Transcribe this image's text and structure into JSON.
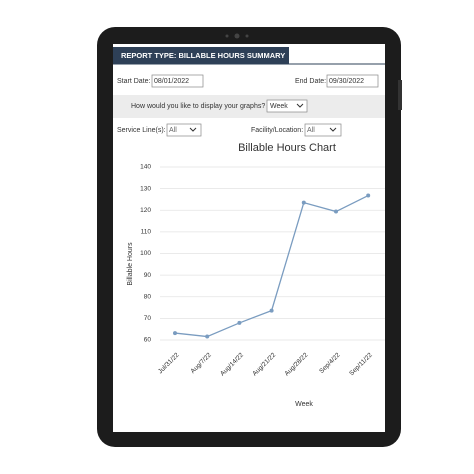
{
  "header": {
    "title": "REPORT TYPE: BILLABLE HOURS SUMMARY"
  },
  "filters": {
    "start_label": "Start Date:",
    "start_value": "08/01/2022",
    "end_label": "End Date:",
    "end_value": "09/30/2022",
    "display_prompt": "How would you like to display your graphs?",
    "display_value": "Week",
    "service_label": "Service Line(s):",
    "service_value": "All",
    "facility_label": "Facility/Location:",
    "facility_value": "All"
  },
  "chart_data": {
    "type": "line",
    "title": "Billable Hours Chart",
    "x_label": "Week",
    "y_label": "Billable Hours",
    "categories": [
      "Jul/31/22",
      "Aug/7/22",
      "Aug/14/22",
      "Aug/21/22",
      "Aug/28/22",
      "Sep/4/22",
      "Sep/11/22"
    ],
    "values": [
      63.2,
      61.6,
      67.9,
      73.6,
      123.5,
      119.4,
      126.8
    ],
    "color": "#7a9cc0",
    "ylim": [
      60,
      140
    ],
    "yticks": [
      60,
      70,
      80,
      90,
      100,
      110,
      120,
      130,
      140
    ],
    "grid": true
  }
}
